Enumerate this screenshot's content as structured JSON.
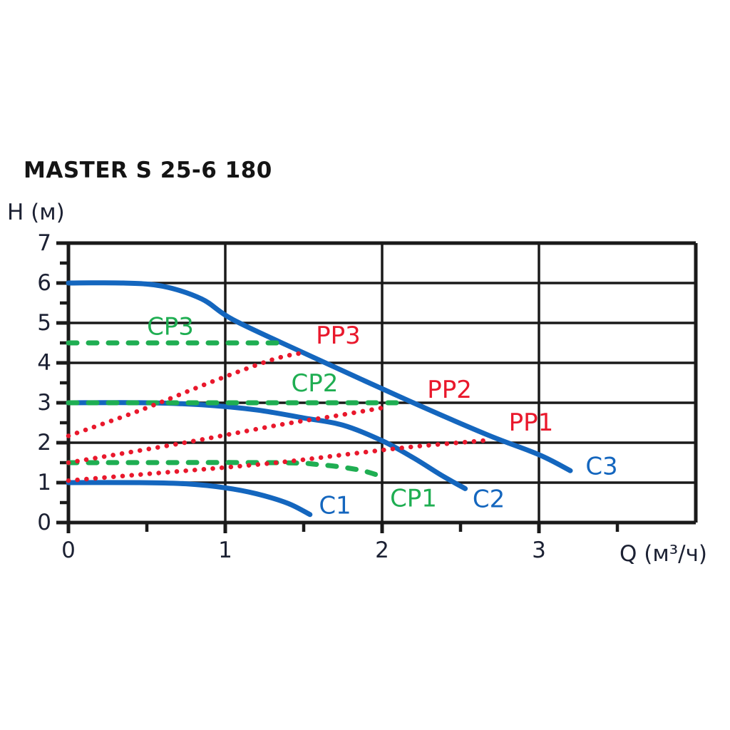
{
  "header": {
    "title": "MASTER S 25-6 180"
  },
  "colors": {
    "blue": "#1466be",
    "green": "#1fae52",
    "red": "#e9182c",
    "grid": "#1a1a1a",
    "text": "#1c2133",
    "title": "#141414",
    "background": "#ffffff"
  },
  "chart_data": {
    "type": "line",
    "title": "MASTER S 25-6 180",
    "xlabel": "Q (м³/ч)",
    "ylabel": "H (м)",
    "xlim": [
      0,
      4
    ],
    "ylim": [
      0,
      7
    ],
    "grid": "major-both",
    "legend_position": "none",
    "x_major_ticks": [
      0,
      1,
      2,
      3
    ],
    "x_tick_labels": [
      "0",
      "1",
      "2",
      "3"
    ],
    "x_minor_ticks": [
      0.5,
      1.5,
      2.5,
      3.5
    ],
    "y_major_ticks": [
      0,
      1,
      2,
      3,
      4,
      5,
      6,
      7
    ],
    "y_tick_labels": [
      "0",
      "1",
      "2",
      "3",
      "4",
      "5",
      "6",
      "7"
    ],
    "y_minor_ticks": [
      0.5,
      1.5,
      2.5,
      3.5,
      4.5,
      5.5,
      6.5
    ],
    "series": [
      {
        "name": "C1",
        "kind": "speed-curve",
        "style": "solid",
        "color_key": "blue",
        "points": [
          [
            0,
            1.0
          ],
          [
            0.45,
            1.0
          ],
          [
            0.75,
            0.97
          ],
          [
            1.0,
            0.87
          ],
          [
            1.2,
            0.72
          ],
          [
            1.4,
            0.48
          ],
          [
            1.54,
            0.2
          ]
        ],
        "label": {
          "text": "C1",
          "q": 1.7,
          "h": 0.42
        }
      },
      {
        "name": "C2",
        "kind": "speed-curve",
        "style": "solid",
        "color_key": "blue",
        "points": [
          [
            0,
            3.0
          ],
          [
            0.5,
            3.0
          ],
          [
            0.85,
            2.95
          ],
          [
            1.2,
            2.82
          ],
          [
            1.5,
            2.62
          ],
          [
            1.75,
            2.44
          ],
          [
            2.0,
            2.05
          ],
          [
            2.2,
            1.62
          ],
          [
            2.38,
            1.18
          ],
          [
            2.53,
            0.85
          ]
        ],
        "label": {
          "text": "C2",
          "q": 2.68,
          "h": 0.58
        }
      },
      {
        "name": "C3",
        "kind": "speed-curve",
        "style": "solid",
        "color_key": "blue",
        "points": [
          [
            0,
            6.0
          ],
          [
            0.35,
            6.0
          ],
          [
            0.6,
            5.92
          ],
          [
            0.85,
            5.6
          ],
          [
            1.05,
            5.08
          ],
          [
            1.5,
            4.25
          ],
          [
            2.17,
            3.05
          ],
          [
            2.67,
            2.2
          ],
          [
            3.0,
            1.7
          ],
          [
            3.2,
            1.3
          ]
        ],
        "label": {
          "text": "C3",
          "q": 3.4,
          "h": 1.4
        }
      },
      {
        "name": "CP1",
        "kind": "constant-pressure-curve",
        "style": "dashed",
        "color_key": "green",
        "points": [
          [
            0,
            1.5
          ],
          [
            1.3,
            1.5
          ],
          [
            1.6,
            1.45
          ],
          [
            1.85,
            1.32
          ],
          [
            2.0,
            1.15
          ]
        ],
        "label": {
          "text": "CP1",
          "q": 2.2,
          "h": 0.6
        }
      },
      {
        "name": "CP2",
        "kind": "constant-pressure-curve",
        "style": "dashed",
        "color_key": "green",
        "points": [
          [
            0,
            3.0
          ],
          [
            2.16,
            3.0
          ]
        ],
        "label": {
          "text": "CP2",
          "q": 1.57,
          "h": 3.48
        }
      },
      {
        "name": "CP3",
        "kind": "constant-pressure-curve",
        "style": "dashed",
        "color_key": "green",
        "points": [
          [
            0,
            4.5
          ],
          [
            1.37,
            4.5
          ]
        ],
        "label": {
          "text": "CP3",
          "q": 0.65,
          "h": 4.9
        }
      },
      {
        "name": "PP1",
        "kind": "proportional-pressure-curve",
        "style": "dotted",
        "color_key": "red",
        "points": [
          [
            0,
            1.05
          ],
          [
            0.6,
            1.25
          ],
          [
            1.0,
            1.38
          ],
          [
            1.4,
            1.53
          ],
          [
            1.8,
            1.72
          ],
          [
            2.2,
            1.9
          ],
          [
            2.67,
            2.06
          ]
        ],
        "label": {
          "text": "PP1",
          "q": 2.95,
          "h": 2.5
        }
      },
      {
        "name": "PP2",
        "kind": "proportional-pressure-curve",
        "style": "dotted",
        "color_key": "red",
        "points": [
          [
            0,
            1.5
          ],
          [
            0.74,
            2.0
          ],
          [
            1.35,
            2.45
          ],
          [
            1.7,
            2.67
          ],
          [
            2.04,
            2.9
          ]
        ],
        "label": {
          "text": "PP2",
          "q": 2.43,
          "h": 3.32
        }
      },
      {
        "name": "PP3",
        "kind": "proportional-pressure-curve",
        "style": "dotted",
        "color_key": "red",
        "points": [
          [
            0,
            2.17
          ],
          [
            0.45,
            2.8
          ],
          [
            0.93,
            3.55
          ],
          [
            1.3,
            4.08
          ],
          [
            1.49,
            4.25
          ]
        ],
        "label": {
          "text": "PP3",
          "q": 1.72,
          "h": 4.68
        }
      }
    ]
  }
}
